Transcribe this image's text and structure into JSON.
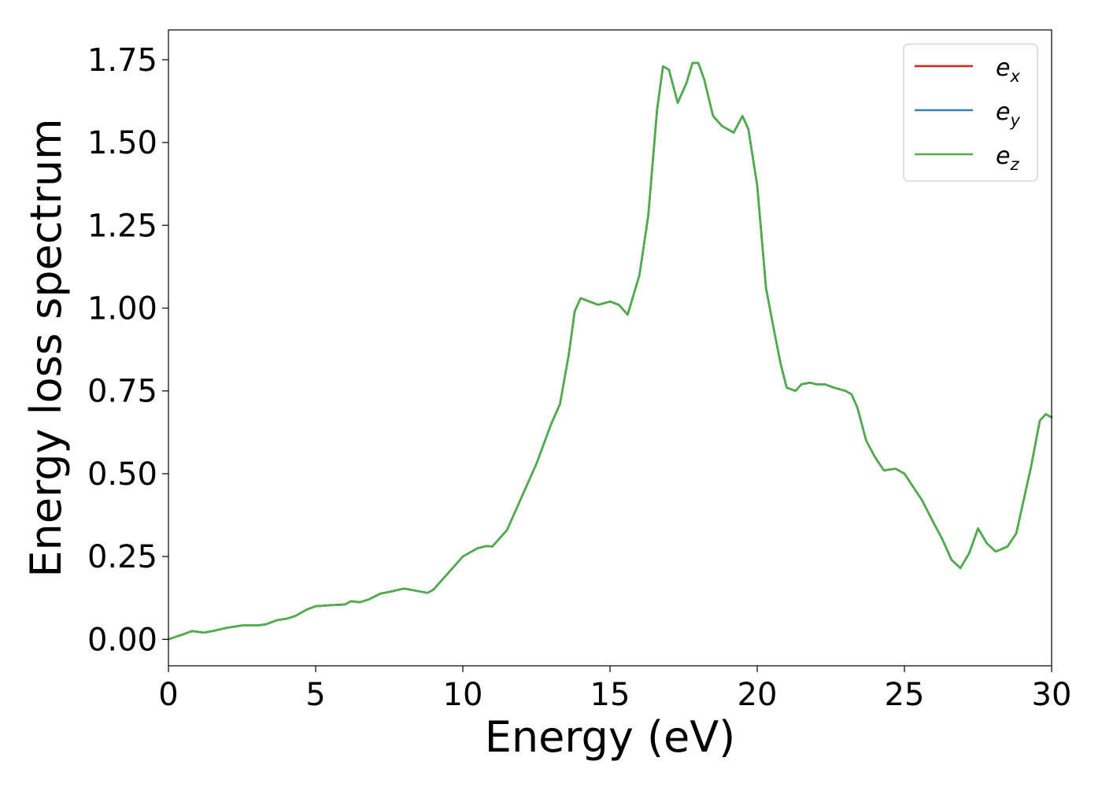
{
  "chart_data": {
    "type": "line",
    "title": "",
    "xlabel": "Energy (eV)",
    "ylabel": "Energy loss spectrum",
    "xlim": [
      0,
      30
    ],
    "ylim": [
      -0.08,
      1.84
    ],
    "xticks": [
      0,
      5,
      10,
      15,
      20,
      25,
      30
    ],
    "xtick_labels": [
      "0",
      "5",
      "10",
      "15",
      "20",
      "25",
      "30"
    ],
    "yticks": [
      0.0,
      0.25,
      0.5,
      0.75,
      1.0,
      1.25,
      1.5,
      1.75
    ],
    "ytick_labels": [
      "0.00",
      "0.25",
      "0.50",
      "0.75",
      "1.00",
      "1.25",
      "1.50",
      "1.75"
    ],
    "grid": false,
    "legend_position": "top-right",
    "series": [
      {
        "name": "e_x",
        "legend_base": "e",
        "legend_sub": "x",
        "color": "#e41a1c"
      },
      {
        "name": "e_y",
        "legend_base": "e",
        "legend_sub": "y",
        "color": "#377eb8"
      },
      {
        "name": "e_z",
        "legend_base": "e",
        "legend_sub": "z",
        "color": "#4daf4a"
      }
    ],
    "x": [
      0,
      0.5,
      0.8,
      1.2,
      1.5,
      2.0,
      2.5,
      3.0,
      3.3,
      3.7,
      4.0,
      4.3,
      4.7,
      5.0,
      5.5,
      6.0,
      6.2,
      6.5,
      6.8,
      7.2,
      7.6,
      8.0,
      8.4,
      8.8,
      9.0,
      9.5,
      10.0,
      10.5,
      10.8,
      11.0,
      11.5,
      12.0,
      12.5,
      13.0,
      13.3,
      13.6,
      13.8,
      14.0,
      14.3,
      14.6,
      15.0,
      15.3,
      15.6,
      16.0,
      16.3,
      16.6,
      16.8,
      17.0,
      17.3,
      17.6,
      17.8,
      18.0,
      18.2,
      18.5,
      18.8,
      19.0,
      19.2,
      19.5,
      19.7,
      20.0,
      20.3,
      20.6,
      20.8,
      21.0,
      21.3,
      21.5,
      21.8,
      22.0,
      22.3,
      22.6,
      23.0,
      23.2,
      23.4,
      23.7,
      24.0,
      24.3,
      24.7,
      25.0,
      25.3,
      25.6,
      26.0,
      26.3,
      26.6,
      26.9,
      27.2,
      27.5,
      27.8,
      28.1,
      28.5,
      28.8,
      29.0,
      29.3,
      29.6,
      29.8,
      30.0
    ],
    "y": [
      0.0,
      0.015,
      0.025,
      0.02,
      0.025,
      0.035,
      0.042,
      0.042,
      0.045,
      0.058,
      0.062,
      0.07,
      0.09,
      0.1,
      0.103,
      0.105,
      0.115,
      0.112,
      0.12,
      0.138,
      0.145,
      0.153,
      0.147,
      0.14,
      0.15,
      0.2,
      0.25,
      0.275,
      0.282,
      0.28,
      0.33,
      0.43,
      0.53,
      0.65,
      0.71,
      0.86,
      0.99,
      1.03,
      1.02,
      1.01,
      1.02,
      1.01,
      0.98,
      1.1,
      1.28,
      1.6,
      1.73,
      1.72,
      1.62,
      1.68,
      1.74,
      1.74,
      1.69,
      1.58,
      1.55,
      1.54,
      1.53,
      1.58,
      1.54,
      1.37,
      1.06,
      0.92,
      0.83,
      0.76,
      0.75,
      0.77,
      0.775,
      0.77,
      0.77,
      0.76,
      0.75,
      0.74,
      0.7,
      0.6,
      0.55,
      0.51,
      0.515,
      0.5,
      0.46,
      0.42,
      0.35,
      0.3,
      0.24,
      0.215,
      0.26,
      0.335,
      0.29,
      0.265,
      0.28,
      0.32,
      0.4,
      0.52,
      0.66,
      0.68,
      0.67
    ]
  }
}
